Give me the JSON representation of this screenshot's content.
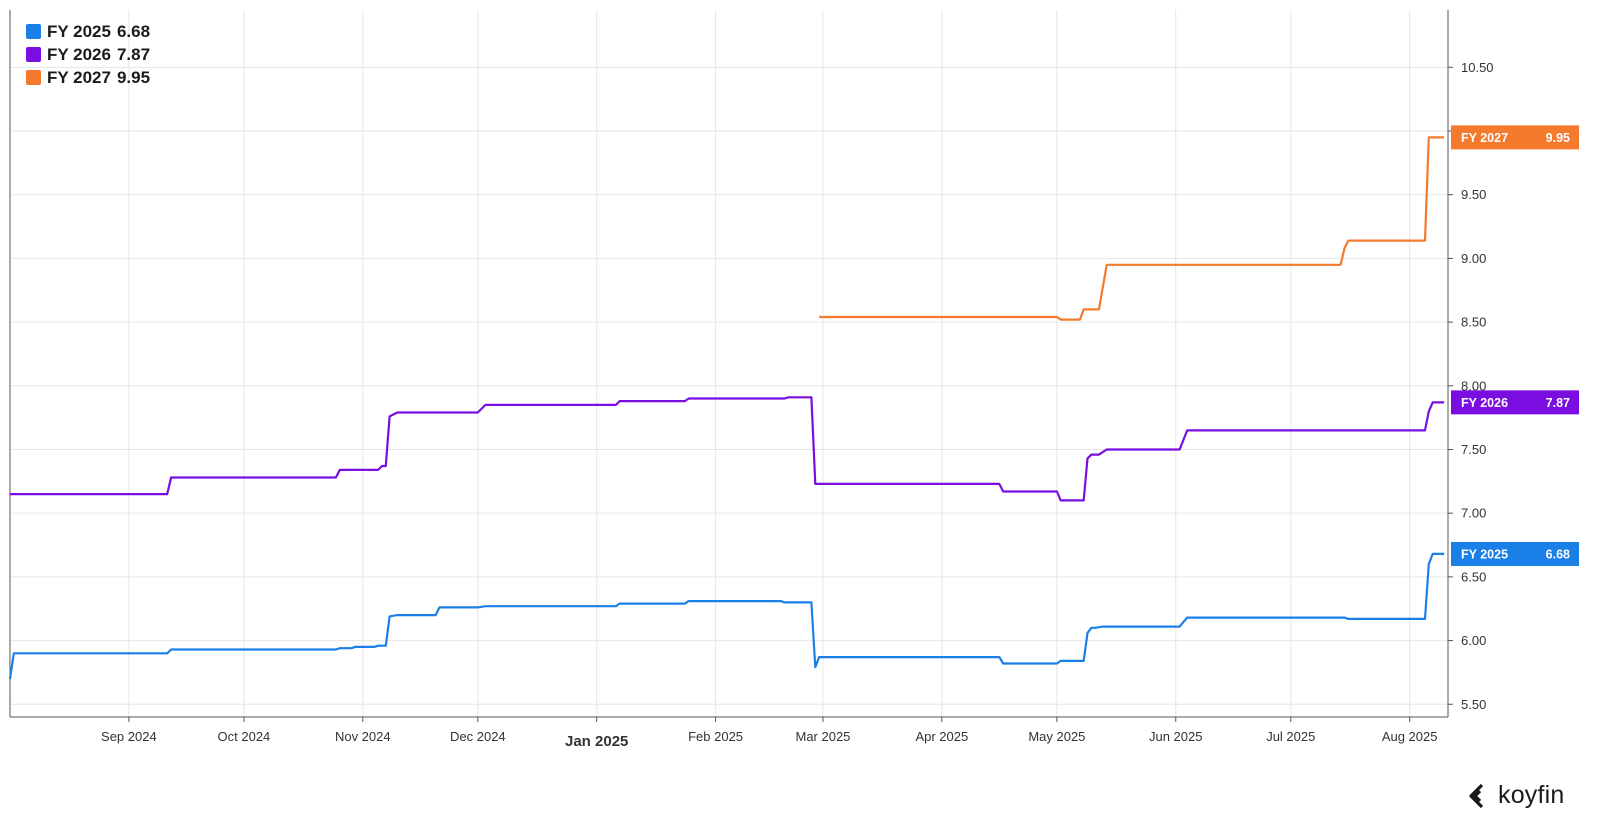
{
  "chart_data": {
    "type": "line",
    "x_type": "date",
    "x_ticks": [
      "Sep 2024",
      "Oct 2024",
      "Nov 2024",
      "Dec 2024",
      "Jan 2025",
      "Feb 2025",
      "Mar 2025",
      "Apr 2025",
      "May 2025",
      "Jun 2025",
      "Jul 2025",
      "Aug 2025"
    ],
    "x_tick_dates": [
      "2024-09-01",
      "2024-10-01",
      "2024-11-01",
      "2024-12-01",
      "2025-01-01",
      "2025-02-01",
      "2025-03-01",
      "2025-04-01",
      "2025-05-01",
      "2025-06-01",
      "2025-07-01",
      "2025-08-01"
    ],
    "major_tick": "Jan 2025",
    "xlim": [
      "2024-08-01",
      "2025-08-11"
    ],
    "y_ticks": [
      "5.50",
      "6.00",
      "6.50",
      "7.00",
      "7.50",
      "8.00",
      "8.50",
      "9.00",
      "9.50",
      "10.00",
      "10.50"
    ],
    "ylim": [
      5.4,
      10.95
    ],
    "y_axis_side": "right",
    "grid": true,
    "legend_position": "top-left",
    "series": [
      {
        "name": "FY 2025",
        "last": "6.68",
        "color": "#1a7fe6",
        "points": [
          [
            "2024-08-01",
            5.7
          ],
          [
            "2024-08-02",
            5.9
          ],
          [
            "2024-09-11",
            5.9
          ],
          [
            "2024-09-12",
            5.93
          ],
          [
            "2024-10-25",
            5.93
          ],
          [
            "2024-10-26",
            5.94
          ],
          [
            "2024-10-29",
            5.94
          ],
          [
            "2024-10-30",
            5.95
          ],
          [
            "2024-11-04",
            5.95
          ],
          [
            "2024-11-05",
            5.96
          ],
          [
            "2024-11-07",
            5.96
          ],
          [
            "2024-11-08",
            6.19
          ],
          [
            "2024-11-10",
            6.2
          ],
          [
            "2024-11-20",
            6.2
          ],
          [
            "2024-11-21",
            6.26
          ],
          [
            "2024-12-01",
            6.26
          ],
          [
            "2024-12-03",
            6.27
          ],
          [
            "2025-01-06",
            6.27
          ],
          [
            "2025-01-07",
            6.29
          ],
          [
            "2025-01-24",
            6.29
          ],
          [
            "2025-01-25",
            6.31
          ],
          [
            "2025-02-18",
            6.31
          ],
          [
            "2025-02-19",
            6.3
          ],
          [
            "2025-02-26",
            6.3
          ],
          [
            "2025-02-27",
            5.79
          ],
          [
            "2025-02-28",
            5.87
          ],
          [
            "2025-04-16",
            5.87
          ],
          [
            "2025-04-17",
            5.82
          ],
          [
            "2025-05-01",
            5.82
          ],
          [
            "2025-05-02",
            5.84
          ],
          [
            "2025-05-08",
            5.84
          ],
          [
            "2025-05-09",
            6.06
          ],
          [
            "2025-05-10",
            6.1
          ],
          [
            "2025-05-11",
            6.1
          ],
          [
            "2025-05-13",
            6.11
          ],
          [
            "2025-06-02",
            6.11
          ],
          [
            "2025-06-04",
            6.18
          ],
          [
            "2025-07-15",
            6.18
          ],
          [
            "2025-07-16",
            6.17
          ],
          [
            "2025-08-05",
            6.17
          ],
          [
            "2025-08-06",
            6.6
          ],
          [
            "2025-08-07",
            6.68
          ],
          [
            "2025-08-10",
            6.68
          ]
        ]
      },
      {
        "name": "FY 2026",
        "last": "7.87",
        "color": "#7a0ee0",
        "points": [
          [
            "2024-08-01",
            7.15
          ],
          [
            "2024-09-11",
            7.15
          ],
          [
            "2024-09-12",
            7.28
          ],
          [
            "2024-10-25",
            7.28
          ],
          [
            "2024-10-26",
            7.34
          ],
          [
            "2024-11-05",
            7.34
          ],
          [
            "2024-11-06",
            7.37
          ],
          [
            "2024-11-07",
            7.37
          ],
          [
            "2024-11-08",
            7.76
          ],
          [
            "2024-11-10",
            7.79
          ],
          [
            "2024-12-01",
            7.79
          ],
          [
            "2024-12-03",
            7.85
          ],
          [
            "2025-01-06",
            7.85
          ],
          [
            "2025-01-07",
            7.88
          ],
          [
            "2025-01-24",
            7.88
          ],
          [
            "2025-01-25",
            7.9
          ],
          [
            "2025-02-19",
            7.9
          ],
          [
            "2025-02-20",
            7.91
          ],
          [
            "2025-02-26",
            7.91
          ],
          [
            "2025-02-27",
            7.23
          ],
          [
            "2025-04-16",
            7.23
          ],
          [
            "2025-04-17",
            7.17
          ],
          [
            "2025-05-01",
            7.17
          ],
          [
            "2025-05-02",
            7.1
          ],
          [
            "2025-05-08",
            7.1
          ],
          [
            "2025-05-09",
            7.43
          ],
          [
            "2025-05-10",
            7.46
          ],
          [
            "2025-05-12",
            7.46
          ],
          [
            "2025-05-14",
            7.5
          ],
          [
            "2025-06-02",
            7.5
          ],
          [
            "2025-06-04",
            7.65
          ],
          [
            "2025-08-05",
            7.65
          ],
          [
            "2025-08-06",
            7.8
          ],
          [
            "2025-08-07",
            7.87
          ],
          [
            "2025-08-10",
            7.87
          ]
        ]
      },
      {
        "name": "FY 2027",
        "last": "9.95",
        "color": "#f47a2e",
        "points": [
          [
            "2025-02-28",
            8.54
          ],
          [
            "2025-05-01",
            8.54
          ],
          [
            "2025-05-02",
            8.52
          ],
          [
            "2025-05-07",
            8.52
          ],
          [
            "2025-05-08",
            8.6
          ],
          [
            "2025-05-12",
            8.6
          ],
          [
            "2025-05-14",
            8.95
          ],
          [
            "2025-07-14",
            8.95
          ],
          [
            "2025-07-15",
            9.08
          ],
          [
            "2025-07-16",
            9.14
          ],
          [
            "2025-08-05",
            9.14
          ],
          [
            "2025-08-06",
            9.95
          ],
          [
            "2025-08-10",
            9.95
          ]
        ]
      }
    ]
  },
  "brand": {
    "name": "koyfin"
  }
}
